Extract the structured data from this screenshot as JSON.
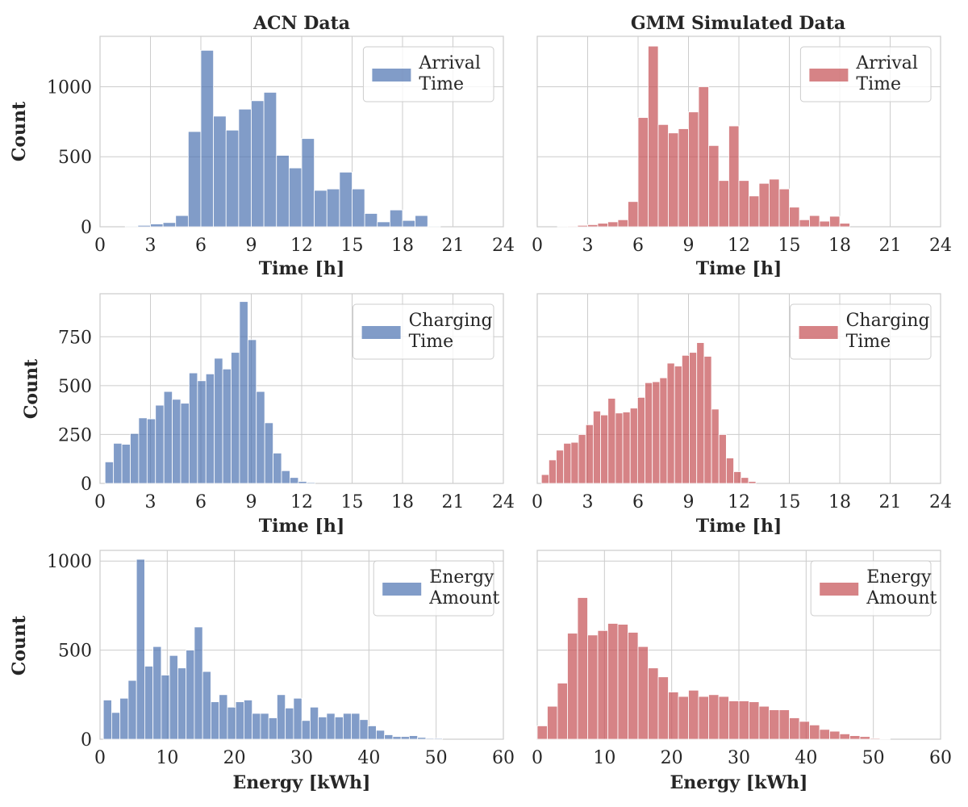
{
  "colors": {
    "acn": "#4c72b0",
    "gmm": "#c44e52",
    "grid": "#cccccc",
    "text": "#262626"
  },
  "column_titles": [
    "ACN Data",
    "GMM Simulated Data"
  ],
  "chart_data": [
    {
      "type": "bar",
      "title": "ACN Data",
      "xlabel": "Time [h]",
      "ylabel": "Count",
      "legend": [
        "Arrival",
        "Time"
      ],
      "legend_position": "top-right",
      "grid": true,
      "color": "#4c72b0",
      "xlim": [
        0,
        24
      ],
      "ylim": [
        0,
        1360
      ],
      "xticks": [
        0,
        3,
        6,
        9,
        12,
        15,
        18,
        21,
        24
      ],
      "yticks": [
        0,
        500,
        1000
      ],
      "bin_start": 0,
      "bin_width": 0.75,
      "values": [
        0,
        0,
        5,
        10,
        20,
        30,
        80,
        680,
        1260,
        790,
        690,
        840,
        900,
        960,
        510,
        420,
        630,
        260,
        270,
        390,
        270,
        95,
        35,
        120,
        45,
        80,
        5,
        0,
        0,
        0,
        0,
        0
      ]
    },
    {
      "type": "bar",
      "title": "GMM Simulated Data",
      "xlabel": "Time [h]",
      "ylabel": "",
      "legend": [
        "Arrival",
        "Time"
      ],
      "legend_position": "top-right",
      "grid": true,
      "color": "#c44e52",
      "xlim": [
        0,
        24
      ],
      "ylim": [
        0,
        1360
      ],
      "xticks": [
        0,
        3,
        6,
        9,
        12,
        15,
        18,
        21,
        24
      ],
      "yticks": [
        0,
        500,
        1000
      ],
      "bin_start": 0,
      "bin_width": 0.6,
      "values": [
        0,
        0,
        2,
        5,
        10,
        15,
        25,
        35,
        50,
        180,
        780,
        1290,
        730,
        670,
        700,
        820,
        1000,
        580,
        330,
        720,
        330,
        220,
        310,
        340,
        270,
        140,
        50,
        80,
        40,
        75,
        25,
        0,
        0,
        0,
        0,
        0,
        0,
        0,
        0,
        0
      ]
    },
    {
      "type": "bar",
      "title": "",
      "xlabel": "Time [h]",
      "ylabel": "Count",
      "legend": [
        "Charging",
        "Time"
      ],
      "legend_position": "top-right",
      "grid": true,
      "color": "#4c72b0",
      "xlim": [
        0,
        24
      ],
      "ylim": [
        0,
        970
      ],
      "xticks": [
        0,
        3,
        6,
        9,
        12,
        15,
        18,
        21,
        24
      ],
      "yticks": [
        0,
        250,
        500,
        750
      ],
      "bin_start": 0.3,
      "bin_width": 0.5,
      "values": [
        110,
        205,
        200,
        255,
        335,
        330,
        400,
        470,
        430,
        410,
        565,
        525,
        560,
        640,
        585,
        670,
        930,
        735,
        470,
        310,
        155,
        65,
        30,
        10,
        5,
        0
      ]
    },
    {
      "type": "bar",
      "title": "",
      "xlabel": "Time [h]",
      "ylabel": "",
      "legend": [
        "Charging",
        "Time"
      ],
      "legend_position": "top-right",
      "grid": true,
      "color": "#c44e52",
      "xlim": [
        0,
        24
      ],
      "ylim": [
        0,
        970
      ],
      "xticks": [
        0,
        3,
        6,
        9,
        12,
        15,
        18,
        21,
        24
      ],
      "yticks": [
        0,
        250,
        500,
        750
      ],
      "bin_start": 0.25,
      "bin_width": 0.44,
      "values": [
        45,
        120,
        170,
        205,
        210,
        250,
        300,
        370,
        350,
        435,
        360,
        365,
        385,
        440,
        515,
        520,
        540,
        615,
        600,
        655,
        670,
        720,
        650,
        380,
        250,
        130,
        60,
        30,
        10,
        0
      ]
    },
    {
      "type": "bar",
      "title": "",
      "xlabel": "Energy [kWh]",
      "ylabel": "Count",
      "legend": [
        "Energy",
        "Amount"
      ],
      "legend_position": "top-right",
      "grid": true,
      "color": "#4c72b0",
      "xlim": [
        0,
        60
      ],
      "ylim": [
        0,
        1060
      ],
      "xticks": [
        0,
        10,
        20,
        30,
        40,
        50,
        60
      ],
      "yticks": [
        0,
        500,
        1000
      ],
      "bin_start": 0.5,
      "bin_width": 1.23,
      "values": [
        220,
        150,
        230,
        330,
        1010,
        410,
        520,
        360,
        470,
        400,
        500,
        630,
        380,
        210,
        250,
        180,
        210,
        220,
        145,
        145,
        120,
        250,
        175,
        230,
        105,
        180,
        125,
        145,
        125,
        145,
        145,
        110,
        75,
        50,
        25,
        15,
        15,
        20,
        10,
        5,
        5
      ]
    },
    {
      "type": "bar",
      "title": "",
      "xlabel": "Energy [kWh]",
      "ylabel": "",
      "legend": [
        "Energy",
        "Amount"
      ],
      "legend_position": "top-right",
      "grid": true,
      "color": "#c44e52",
      "xlim": [
        0,
        60
      ],
      "ylim": [
        0,
        1060
      ],
      "xticks": [
        0,
        10,
        20,
        30,
        40,
        50,
        60
      ],
      "yticks": [
        0,
        500,
        1000
      ],
      "bin_start": 0,
      "bin_width": 1.5,
      "values": [
        75,
        185,
        315,
        595,
        795,
        585,
        610,
        650,
        645,
        600,
        520,
        400,
        350,
        265,
        240,
        275,
        240,
        250,
        240,
        215,
        215,
        210,
        185,
        165,
        165,
        120,
        100,
        80,
        55,
        45,
        30,
        20,
        15,
        5,
        2,
        0,
        0,
        0,
        0,
        0
      ]
    }
  ]
}
